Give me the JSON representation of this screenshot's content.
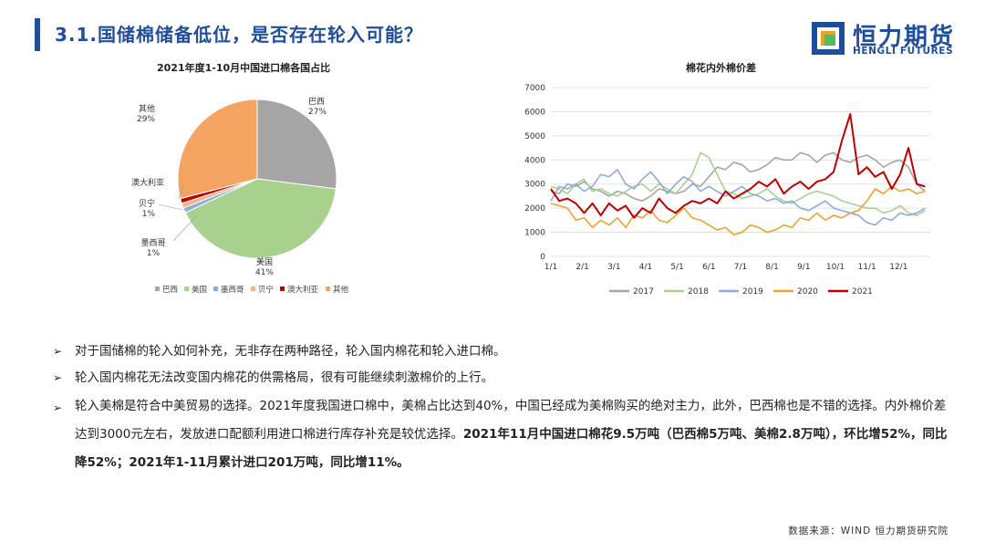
{
  "header": {
    "title": "3.1.国储棉储备低位，是否存在轮入可能？",
    "logo_cn": "恒力期货",
    "logo_en": "HENGLI FUTURES",
    "accent_color": "#1f4e9c"
  },
  "chart_data": [
    {
      "type": "pie",
      "title": "2021年度1-10月中国进口棉各国占比",
      "slices": [
        {
          "name": "巴西",
          "value": 27,
          "label": "27%",
          "color": "#a5a5a5"
        },
        {
          "name": "美国",
          "value": 41,
          "label": "41%",
          "color": "#a9d18e"
        },
        {
          "name": "墨西哥",
          "value": 1,
          "label": "1%",
          "color": "#8faadc"
        },
        {
          "name": "贝宁",
          "value": 1,
          "label": "1%",
          "color": "#f4b183"
        },
        {
          "name": "澳大利亚",
          "value": 1,
          "label": "",
          "color": "#c00000"
        },
        {
          "name": "其他",
          "value": 29,
          "label": "29%",
          "color": "#f4a460"
        }
      ],
      "legend_placement": "bottom"
    },
    {
      "type": "line",
      "title": "棉花内外棉价差",
      "x_ticks": [
        "1/1",
        "2/1",
        "3/1",
        "4/1",
        "5/1",
        "6/1",
        "7/1",
        "8/1",
        "9/1",
        "10/1",
        "11/1",
        "12/1"
      ],
      "ylim": [
        0,
        7000
      ],
      "y_ticks": [
        "0",
        "1000",
        "2000",
        "3000",
        "4000",
        "5000",
        "6000",
        "7000"
      ],
      "grid": true,
      "legend_placement": "bottom",
      "series": [
        {
          "name": "2017",
          "color": "#a5a5a5",
          "x": [
            0,
            8,
            16,
            24,
            32,
            40,
            48,
            56,
            64,
            72,
            80,
            88,
            96,
            104,
            112,
            120,
            128,
            136,
            144,
            152,
            160,
            168,
            176,
            184,
            192,
            200,
            208,
            216,
            224,
            232,
            240,
            248,
            256,
            264,
            272,
            280,
            288,
            296,
            304,
            312,
            320,
            328,
            336,
            344,
            352,
            360
          ],
          "values": [
            2700,
            2600,
            3000,
            2900,
            3100,
            2800,
            2700,
            2500,
            2700,
            2600,
            2400,
            2300,
            2500,
            2800,
            2700,
            2600,
            2700,
            3000,
            2900,
            3300,
            3700,
            3600,
            3900,
            3800,
            3500,
            3600,
            3800,
            4100,
            4000,
            4000,
            4300,
            4200,
            3900,
            4200,
            4300,
            4000,
            3900,
            4100,
            4200,
            4000,
            3700,
            3900,
            4000,
            3700,
            3000,
            2700
          ]
        },
        {
          "name": "2018",
          "color": "#a9d18e",
          "x": [
            0,
            8,
            16,
            24,
            32,
            40,
            48,
            56,
            64,
            72,
            80,
            88,
            96,
            104,
            112,
            120,
            128,
            136,
            144,
            152,
            160,
            168,
            176,
            184,
            192,
            200,
            208,
            216,
            224,
            232,
            240,
            248,
            256,
            264,
            272,
            280,
            288,
            296,
            304,
            312,
            320,
            328,
            336,
            344,
            352,
            360
          ],
          "values": [
            2900,
            2800,
            2600,
            3000,
            3200,
            2700,
            2800,
            2600,
            2500,
            2700,
            2900,
            3000,
            2700,
            3000,
            2800,
            2600,
            3000,
            3400,
            4300,
            4100,
            3400,
            2700,
            2600,
            2400,
            2500,
            2600,
            2800,
            2500,
            2300,
            2200,
            2400,
            2600,
            2700,
            2600,
            2500,
            2300,
            2200,
            2100,
            2000,
            2000,
            1800,
            1900,
            2100,
            1800,
            1700,
            1900
          ]
        },
        {
          "name": "2019",
          "color": "#8faadc",
          "x": [
            0,
            8,
            16,
            24,
            32,
            40,
            48,
            56,
            64,
            72,
            80,
            88,
            96,
            104,
            112,
            120,
            128,
            136,
            144,
            152,
            160,
            168,
            176,
            184,
            192,
            200,
            208,
            216,
            224,
            232,
            240,
            248,
            256,
            264,
            272,
            280,
            288,
            296,
            304,
            312,
            320,
            328,
            336,
            344,
            352,
            360
          ],
          "values": [
            2300,
            2900,
            2800,
            3000,
            2700,
            2900,
            3400,
            3300,
            3600,
            3000,
            2800,
            3200,
            3500,
            3100,
            2600,
            3000,
            3300,
            3100,
            2700,
            2900,
            2700,
            2500,
            2700,
            2900,
            2600,
            2500,
            2300,
            2400,
            2200,
            2300,
            2000,
            1900,
            2100,
            2300,
            2000,
            1900,
            1800,
            1700,
            1400,
            1300,
            1600,
            1500,
            1800,
            1700,
            1800,
            2000
          ]
        },
        {
          "name": "2020",
          "color": "#f0a22e",
          "x": [
            0,
            8,
            16,
            24,
            32,
            40,
            48,
            56,
            64,
            72,
            80,
            88,
            96,
            104,
            112,
            120,
            128,
            136,
            144,
            152,
            160,
            168,
            176,
            184,
            192,
            200,
            208,
            216,
            224,
            232,
            240,
            248,
            256,
            264,
            272,
            280,
            288,
            296,
            304,
            312,
            320,
            328,
            336,
            344,
            352,
            360
          ],
          "values": [
            2200,
            2100,
            2000,
            1500,
            1600,
            1200,
            1500,
            1300,
            1600,
            1200,
            1700,
            1600,
            1900,
            1500,
            1400,
            1700,
            2000,
            1600,
            1500,
            1300,
            1100,
            1200,
            900,
            1000,
            1300,
            1200,
            1000,
            1100,
            1300,
            1200,
            1600,
            1500,
            1800,
            1500,
            1700,
            1600,
            1800,
            1900,
            2300,
            2800,
            2600,
            2900,
            2700,
            2800,
            2600,
            2700
          ]
        },
        {
          "name": "2021",
          "color": "#c00000",
          "x": [
            0,
            8,
            16,
            24,
            32,
            40,
            48,
            56,
            64,
            72,
            80,
            88,
            96,
            104,
            112,
            120,
            128,
            136,
            144,
            152,
            160,
            168,
            176,
            184,
            192,
            200,
            208,
            216,
            224,
            232,
            240,
            248,
            256,
            264,
            272,
            280,
            288,
            296,
            304,
            312,
            320,
            328,
            336,
            344,
            352,
            360
          ],
          "values": [
            2800,
            2300,
            2400,
            2200,
            1800,
            2200,
            1700,
            2200,
            1900,
            2100,
            1600,
            2000,
            1800,
            2400,
            2000,
            1800,
            2100,
            2300,
            2200,
            2400,
            2200,
            2700,
            2400,
            2600,
            2800,
            3100,
            2900,
            3200,
            2600,
            2900,
            3100,
            2800,
            3100,
            3200,
            3500,
            4800,
            5900,
            3400,
            3700,
            3300,
            3500,
            2800,
            3400,
            4500,
            3000,
            2900
          ]
        }
      ]
    }
  ],
  "bullets": [
    {
      "parts": [
        {
          "text": "对于国储棉的轮入如何补充，无非存在两种路径，轮入国内棉花和轮入进口棉。",
          "bold": false
        }
      ]
    },
    {
      "parts": [
        {
          "text": "轮入国内棉花无法改变国内棉花的供需格局，很有可能继续刺激棉价的上行。",
          "bold": false
        }
      ]
    },
    {
      "parts": [
        {
          "text": "轮入美棉是符合中美贸易的选择。2021年度我国进口棉中，美棉占比达到40%，中国已经成为美棉购买的绝对主力，此外，巴西棉也是不错的选择。内外棉价差达到3000元左右，发放进口配额利用进口棉进行库存补充是较优选择。",
          "bold": false
        },
        {
          "text": "2021年11月中国进口棉花9.5万吨（巴西棉5万吨、美棉2.8万吨），环比增52%，同比降52%；2021年1-11月累计进口201万吨，同比增11%。",
          "bold": true
        }
      ]
    }
  ],
  "footer": {
    "source": "数据来源：WIND 恒力期货研究院"
  }
}
